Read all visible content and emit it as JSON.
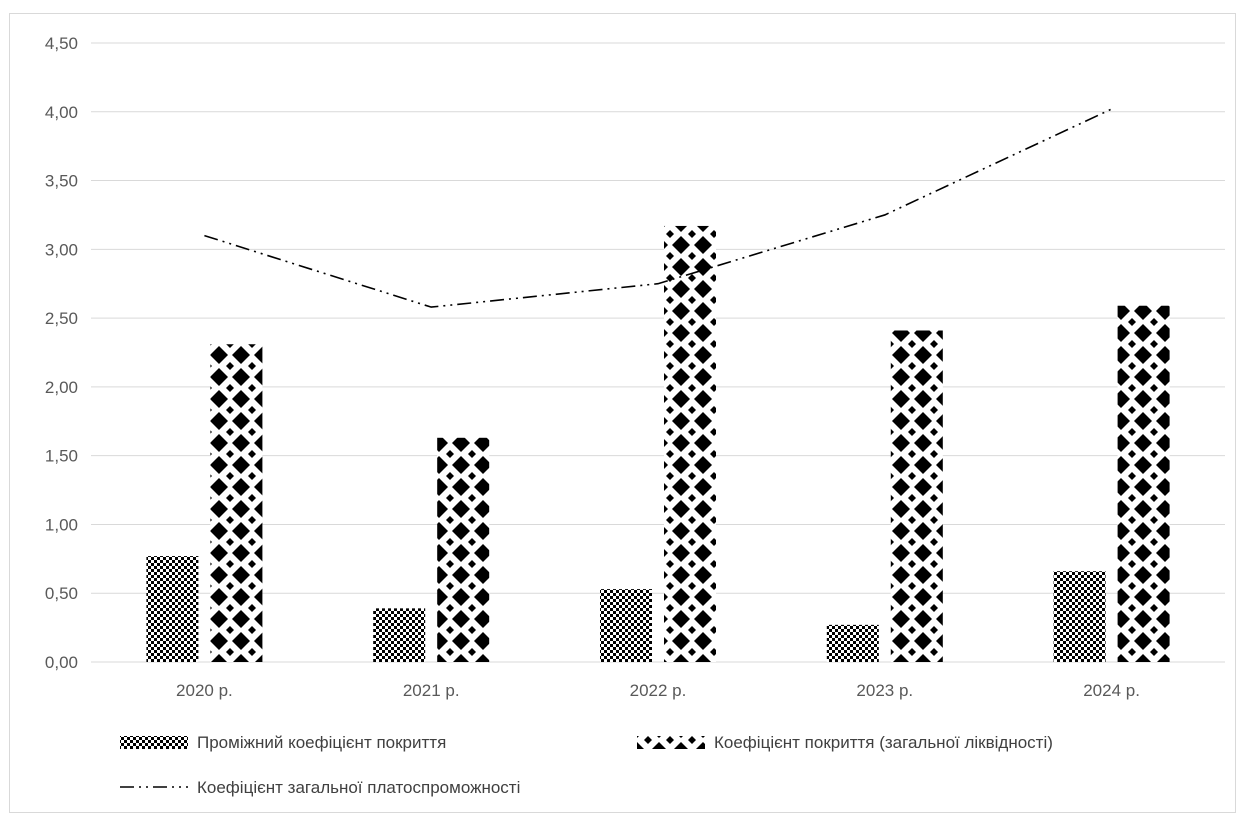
{
  "chart_data": {
    "type": "bar",
    "categories": [
      "2020 р.",
      "2021 р.",
      "2022 р.",
      "2023 р.",
      "2024 р."
    ],
    "series": [
      {
        "name": "Проміжний коефіцієнт покриття",
        "type": "bar",
        "pattern": "checker",
        "values": [
          0.77,
          0.39,
          0.53,
          0.27,
          0.66
        ]
      },
      {
        "name": "Коефіцієнт покриття (загальної ліквідності)",
        "type": "bar",
        "pattern": "diamond",
        "values": [
          2.31,
          1.63,
          3.17,
          2.41,
          2.59
        ]
      },
      {
        "name": "Коефіцієнт загальної платоспроможності",
        "type": "line",
        "style": "dash-dot-dot",
        "values": [
          3.1,
          2.58,
          2.75,
          3.25,
          4.02
        ]
      }
    ],
    "ylim": [
      0,
      4.5
    ],
    "yticks": [
      "0,00",
      "0,50",
      "1,00",
      "1,50",
      "2,00",
      "2,50",
      "3,00",
      "3,50",
      "4,00",
      "4,50"
    ],
    "grid": true,
    "legend_position": "bottom",
    "colors": {
      "grid": "#d9d9d9",
      "ink": "#000000",
      "text": "#595959"
    }
  }
}
